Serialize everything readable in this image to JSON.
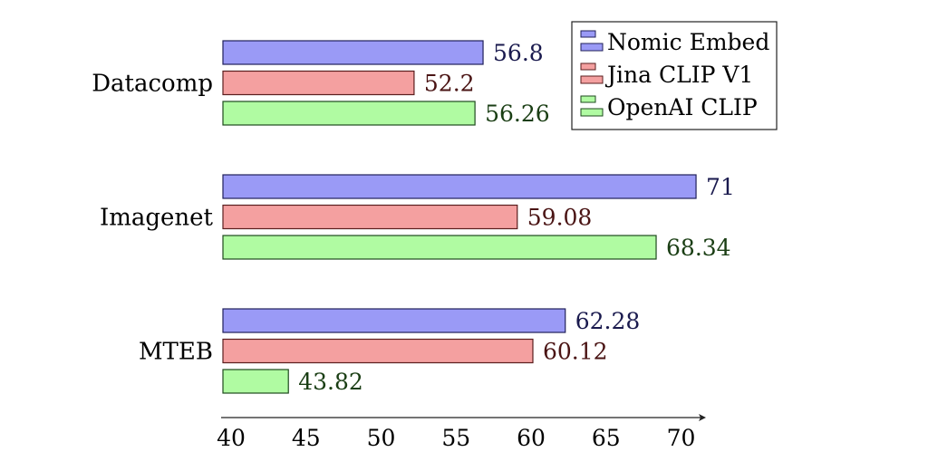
{
  "chart_data": {
    "type": "bar",
    "orientation": "horizontal",
    "categories": [
      "Datacomp",
      "Imagenet",
      "MTEB"
    ],
    "series": [
      {
        "name": "Nomic Embed",
        "values": [
          56.8,
          71,
          62.28
        ],
        "labels": [
          "56.8",
          "71",
          "62.28"
        ],
        "fill": "#9a9af6",
        "stroke": "#20205a",
        "text": "#1a1a4e"
      },
      {
        "name": "Jina CLIP V1",
        "values": [
          52.2,
          59.08,
          60.12
        ],
        "labels": [
          "52.2",
          "59.08",
          "60.12"
        ],
        "fill": "#f4a0a0",
        "stroke": "#5a1e1e",
        "text": "#4a1414"
      },
      {
        "name": "OpenAI CLIP",
        "values": [
          56.26,
          68.34,
          43.82
        ],
        "labels": [
          "56.26",
          "68.34",
          "43.82"
        ],
        "fill": "#b0fba2",
        "stroke": "#1e4a1e",
        "text": "#1a3e14"
      }
    ],
    "xticks": [
      "40",
      "45",
      "50",
      "55",
      "60",
      "65",
      "70"
    ],
    "xlim": [
      40,
      72
    ],
    "title": "",
    "xlabel": "",
    "ylabel": "",
    "grid": false,
    "legend": "top-right"
  }
}
